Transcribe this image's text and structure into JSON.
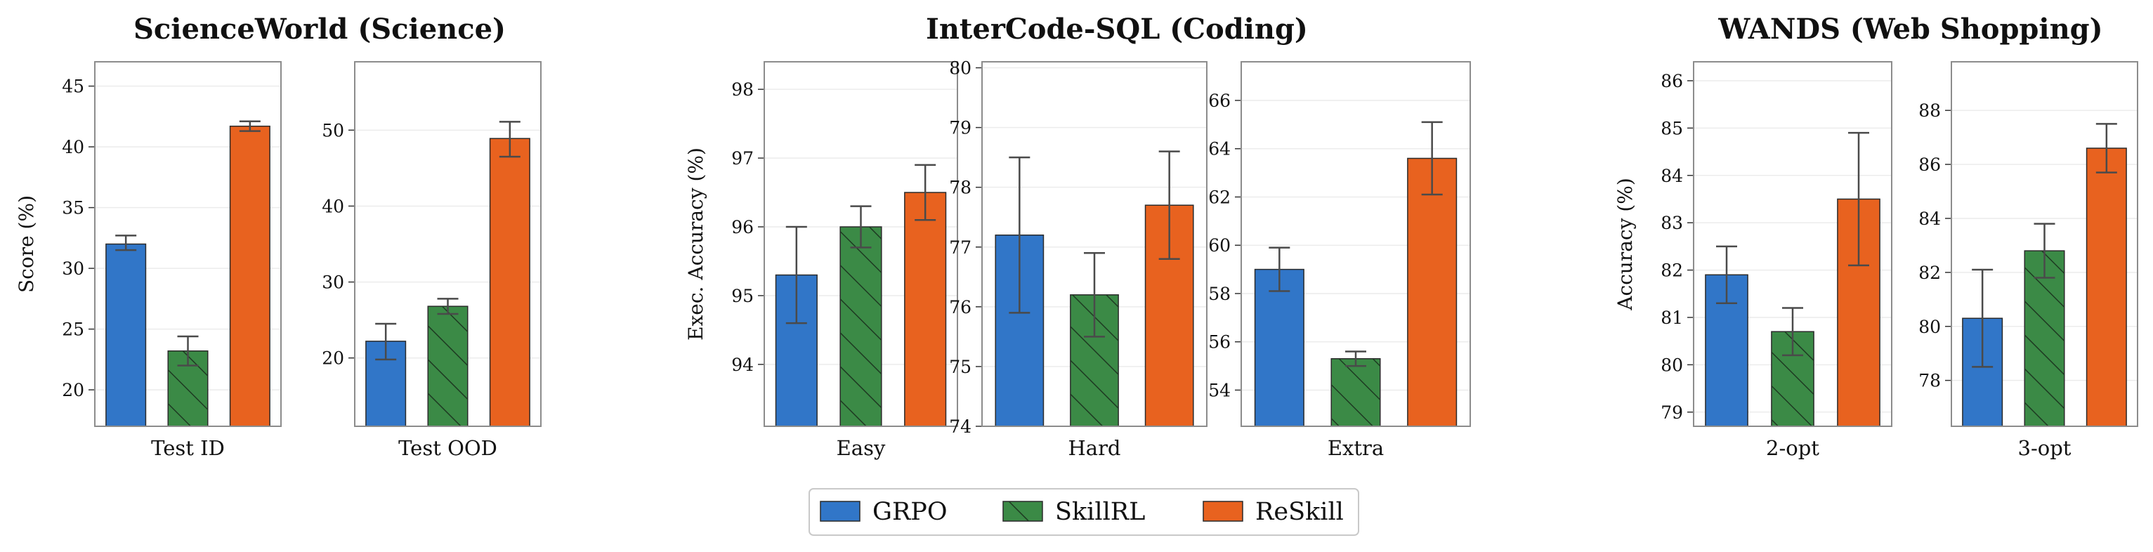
{
  "colors": {
    "GRPO": "#3176c8",
    "SkillRL": "#3b8a46",
    "ReSkill": "#e8621f",
    "grid": "#ececec",
    "frame": "#8c8c8c",
    "errorbar": "#4a4a4a",
    "hatch": "#1e3a22"
  },
  "legend": {
    "items": [
      {
        "label": "GRPO",
        "key": "GRPO",
        "hatched": false
      },
      {
        "label": "SkillRL",
        "key": "SkillRL",
        "hatched": true
      },
      {
        "label": "ReSkill",
        "key": "ReSkill",
        "hatched": false
      }
    ],
    "placement": "bottom-center"
  },
  "groups": [
    {
      "title": "ScienceWorld (Science)",
      "ylabel": "Score (%)"
    },
    {
      "title": "InterCode-SQL (Coding)",
      "ylabel": "Exec. Accuracy (%)"
    },
    {
      "title": "WANDS (Web Shopping)",
      "ylabel": "Accuracy (%)"
    }
  ],
  "chart_data": [
    {
      "type": "bar",
      "group": "ScienceWorld (Science)",
      "xlabel": "Test ID",
      "ylabel": "Score (%)",
      "ylim": [
        17,
        47
      ],
      "yticks": [
        20,
        25,
        30,
        35,
        40,
        45
      ],
      "grid": true,
      "series": [
        {
          "name": "GRPO",
          "value": 32.0,
          "error": [
            31.5,
            32.7
          ]
        },
        {
          "name": "SkillRL",
          "value": 23.2,
          "error": [
            22.0,
            24.4
          ]
        },
        {
          "name": "ReSkill",
          "value": 41.7,
          "error": [
            41.3,
            42.1
          ]
        }
      ]
    },
    {
      "type": "bar",
      "group": "ScienceWorld (Science)",
      "xlabel": "Test OOD",
      "ylabel": "",
      "ylim": [
        11,
        59
      ],
      "yticks": [
        20,
        30,
        40,
        50
      ],
      "grid": true,
      "series": [
        {
          "name": "GRPO",
          "value": 22.2,
          "error": [
            19.8,
            24.5
          ]
        },
        {
          "name": "SkillRL",
          "value": 26.8,
          "error": [
            25.8,
            27.8
          ]
        },
        {
          "name": "ReSkill",
          "value": 48.9,
          "error": [
            46.5,
            51.1
          ]
        }
      ]
    },
    {
      "type": "bar",
      "group": "InterCode-SQL (Coding)",
      "xlabel": "Easy",
      "ylabel": "Exec. Accuracy (%)",
      "ylim": [
        93.1,
        98.4
      ],
      "yticks": [
        94,
        95,
        96,
        97,
        98
      ],
      "grid": true,
      "series": [
        {
          "name": "GRPO",
          "value": 95.3,
          "error": [
            94.6,
            96.0
          ]
        },
        {
          "name": "SkillRL",
          "value": 96.0,
          "error": [
            95.7,
            96.3
          ]
        },
        {
          "name": "ReSkill",
          "value": 96.5,
          "error": [
            96.1,
            96.9
          ]
        }
      ]
    },
    {
      "type": "bar",
      "group": "InterCode-SQL (Coding)",
      "xlabel": "Hard",
      "ylabel": "",
      "ylim": [
        74.0,
        80.1
      ],
      "yticks": [
        74,
        75,
        76,
        77,
        78,
        79,
        80
      ],
      "grid": true,
      "series": [
        {
          "name": "GRPO",
          "value": 77.2,
          "error": [
            75.9,
            78.5
          ]
        },
        {
          "name": "SkillRL",
          "value": 76.2,
          "error": [
            75.5,
            76.9
          ]
        },
        {
          "name": "ReSkill",
          "value": 77.7,
          "error": [
            76.8,
            78.6
          ]
        }
      ]
    },
    {
      "type": "bar",
      "group": "InterCode-SQL (Coding)",
      "xlabel": "Extra",
      "ylabel": "",
      "ylim": [
        52.5,
        67.6
      ],
      "yticks": [
        54,
        56,
        58,
        60,
        62,
        64,
        66
      ],
      "grid": true,
      "series": [
        {
          "name": "GRPO",
          "value": 59.0,
          "error": [
            58.1,
            59.9
          ]
        },
        {
          "name": "SkillRL",
          "value": 55.3,
          "error": [
            55.0,
            55.6
          ]
        },
        {
          "name": "ReSkill",
          "value": 63.6,
          "error": [
            62.1,
            65.1
          ]
        }
      ]
    },
    {
      "type": "bar",
      "group": "WANDS (Web Shopping)",
      "xlabel": "2-opt",
      "ylabel": "Accuracy (%)",
      "ylim": [
        78.7,
        86.4
      ],
      "yticks": [
        79,
        80,
        81,
        82,
        83,
        84,
        85,
        86
      ],
      "grid": true,
      "series": [
        {
          "name": "GRPO",
          "value": 81.9,
          "error": [
            81.3,
            82.5
          ]
        },
        {
          "name": "SkillRL",
          "value": 80.7,
          "error": [
            80.2,
            81.2
          ]
        },
        {
          "name": "ReSkill",
          "value": 83.5,
          "error": [
            82.1,
            84.9
          ]
        }
      ]
    },
    {
      "type": "bar",
      "group": "WANDS (Web Shopping)",
      "xlabel": "3-opt",
      "ylabel": "",
      "ylim": [
        76.3,
        89.8
      ],
      "yticks": [
        78,
        80,
        82,
        84,
        86,
        88
      ],
      "grid": true,
      "series": [
        {
          "name": "GRPO",
          "value": 80.3,
          "error": [
            78.5,
            82.1
          ]
        },
        {
          "name": "SkillRL",
          "value": 82.8,
          "error": [
            81.8,
            83.8
          ]
        },
        {
          "name": "ReSkill",
          "value": 86.6,
          "error": [
            85.7,
            87.5
          ]
        }
      ]
    }
  ]
}
